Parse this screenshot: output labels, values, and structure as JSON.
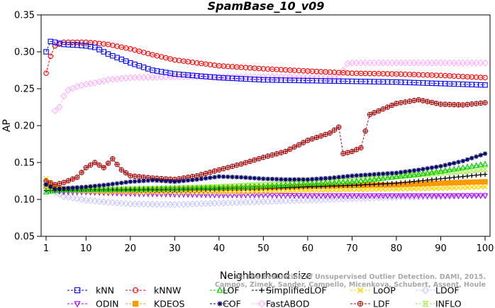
{
  "chart_data": {
    "type": "line",
    "title": "SpamBase_10_v09",
    "xlabel": "Neighborhood size",
    "ylabel": "AP",
    "xlim": [
      1,
      100
    ],
    "ylim": [
      0.05,
      0.35
    ],
    "x_ticks": [
      1,
      10,
      20,
      30,
      40,
      50,
      60,
      70,
      80,
      90,
      100
    ],
    "y_ticks": [
      "0.05",
      "0.10",
      "0.15",
      "0.20",
      "0.25",
      "0.30",
      "0.35"
    ],
    "grid": false,
    "legend_position": "bottom",
    "citation": [
      "Campos, Zimek, Sander, Campello, Micenkova, Schubert, Assent, Houle",
      "On the Evaluation of Unsupervised Outlier Detection. DAMI, 2015."
    ],
    "series": [
      {
        "name": "kNN",
        "color": "#0000ff",
        "marker": "square",
        "x": [
          1,
          2,
          3,
          5,
          8,
          10,
          12,
          15,
          20,
          25,
          30,
          40,
          50,
          60,
          70,
          80,
          90,
          100
        ],
        "values": [
          0.3,
          0.314,
          0.313,
          0.31,
          0.309,
          0.308,
          0.306,
          0.297,
          0.285,
          0.275,
          0.27,
          0.265,
          0.262,
          0.261,
          0.26,
          0.259,
          0.257,
          0.255
        ]
      },
      {
        "name": "kNNW",
        "color": "#ff0000",
        "marker": "circle",
        "x": [
          1,
          2,
          3,
          5,
          8,
          10,
          12,
          15,
          20,
          25,
          30,
          40,
          50,
          60,
          70,
          80,
          90,
          100
        ],
        "values": [
          0.271,
          0.294,
          0.308,
          0.313,
          0.313,
          0.313,
          0.312,
          0.31,
          0.304,
          0.296,
          0.289,
          0.281,
          0.277,
          0.274,
          0.271,
          0.27,
          0.268,
          0.265
        ]
      },
      {
        "name": "LOF",
        "color": "#00cc00",
        "marker": "triangle-up",
        "x": [
          1,
          3,
          5,
          10,
          20,
          30,
          40,
          50,
          60,
          70,
          75,
          80,
          85,
          90,
          95,
          100
        ],
        "values": [
          0.11,
          0.112,
          0.113,
          0.113,
          0.114,
          0.115,
          0.116,
          0.118,
          0.121,
          0.124,
          0.127,
          0.131,
          0.134,
          0.138,
          0.143,
          0.148
        ]
      },
      {
        "name": "SimplifiedLOF",
        "color": "#000000",
        "marker": "plus",
        "x": [
          1,
          5,
          10,
          20,
          30,
          40,
          50,
          60,
          70,
          80,
          90,
          100
        ],
        "values": [
          0.112,
          0.112,
          0.113,
          0.113,
          0.113,
          0.114,
          0.115,
          0.117,
          0.119,
          0.122,
          0.128,
          0.134
        ]
      },
      {
        "name": "LoOP",
        "color": "#ffd700",
        "marker": "x",
        "x": [
          1,
          3,
          5,
          10,
          20,
          30,
          40,
          50,
          60,
          70,
          80,
          90,
          100
        ],
        "values": [
          0.128,
          0.118,
          0.113,
          0.111,
          0.11,
          0.11,
          0.11,
          0.111,
          0.112,
          0.113,
          0.114,
          0.115,
          0.117
        ]
      },
      {
        "name": "LDOF",
        "color": "#c8c8ff",
        "marker": "diamond",
        "x": [
          1,
          3,
          5,
          10,
          15,
          20,
          30,
          40,
          50,
          60,
          70,
          80,
          90,
          100
        ],
        "values": [
          0.12,
          0.11,
          0.104,
          0.099,
          0.096,
          0.094,
          0.093,
          0.095,
          0.097,
          0.099,
          0.101,
          0.103,
          0.104,
          0.106
        ]
      },
      {
        "name": "ODIN",
        "color": "#aa00ff",
        "marker": "triangle-down",
        "x": [
          1,
          3,
          5,
          10,
          20,
          30,
          40,
          50,
          60,
          70,
          80,
          90,
          100
        ],
        "values": [
          0.118,
          0.112,
          0.11,
          0.11,
          0.108,
          0.107,
          0.106,
          0.106,
          0.105,
          0.105,
          0.105,
          0.105,
          0.105
        ]
      },
      {
        "name": "KDEOS",
        "color": "#ff9900",
        "marker": "square-filled",
        "x": [
          1,
          5,
          10,
          20,
          30,
          40,
          50,
          60,
          70,
          80,
          90,
          100
        ],
        "values": [
          0.118,
          0.114,
          0.113,
          0.113,
          0.114,
          0.115,
          0.116,
          0.118,
          0.119,
          0.12,
          0.122,
          0.124
        ]
      },
      {
        "name": "COF",
        "color": "#000066",
        "marker": "asterisk",
        "x": [
          1,
          3,
          5,
          10,
          15,
          20,
          25,
          30,
          35,
          40,
          45,
          50,
          55,
          60,
          65,
          70,
          75,
          80,
          85,
          90,
          95,
          100
        ],
        "values": [
          0.12,
          0.114,
          0.115,
          0.117,
          0.12,
          0.124,
          0.126,
          0.124,
          0.127,
          0.131,
          0.13,
          0.128,
          0.127,
          0.127,
          0.129,
          0.132,
          0.134,
          0.136,
          0.14,
          0.145,
          0.152,
          0.162
        ]
      },
      {
        "name": "FastABOD",
        "color": "#ffb0ff",
        "marker": "diamond",
        "x": [
          3,
          4,
          5,
          6,
          8,
          10,
          12,
          15,
          20,
          30,
          40,
          50,
          60,
          67,
          69,
          70,
          80,
          90,
          100
        ],
        "values": [
          0.22,
          0.225,
          0.24,
          0.248,
          0.253,
          0.256,
          0.258,
          0.262,
          0.265,
          0.266,
          0.266,
          0.266,
          0.266,
          0.266,
          0.284,
          0.285,
          0.285,
          0.285,
          0.285
        ]
      },
      {
        "name": "LDF",
        "color": "#aa1111",
        "marker": "circle-plus",
        "x": [
          1,
          3,
          5,
          8,
          10,
          12,
          14,
          16,
          18,
          20,
          25,
          30,
          35,
          40,
          45,
          50,
          55,
          60,
          65,
          67,
          68,
          70,
          72,
          74,
          76,
          80,
          85,
          90,
          95,
          100
        ],
        "values": [
          0.125,
          0.12,
          0.123,
          0.13,
          0.143,
          0.15,
          0.143,
          0.155,
          0.14,
          0.132,
          0.129,
          0.127,
          0.132,
          0.14,
          0.148,
          0.157,
          0.165,
          0.18,
          0.19,
          0.198,
          0.162,
          0.165,
          0.17,
          0.215,
          0.22,
          0.23,
          0.235,
          0.229,
          0.228,
          0.231
        ]
      },
      {
        "name": "INFLO",
        "color": "#aaee55",
        "marker": "hourglass",
        "x": [
          1,
          3,
          5,
          10,
          20,
          30,
          40,
          50,
          60,
          70,
          80,
          90,
          100
        ],
        "values": [
          0.116,
          0.113,
          0.113,
          0.113,
          0.114,
          0.115,
          0.117,
          0.12,
          0.122,
          0.126,
          0.131,
          0.136,
          0.141
        ]
      }
    ]
  }
}
